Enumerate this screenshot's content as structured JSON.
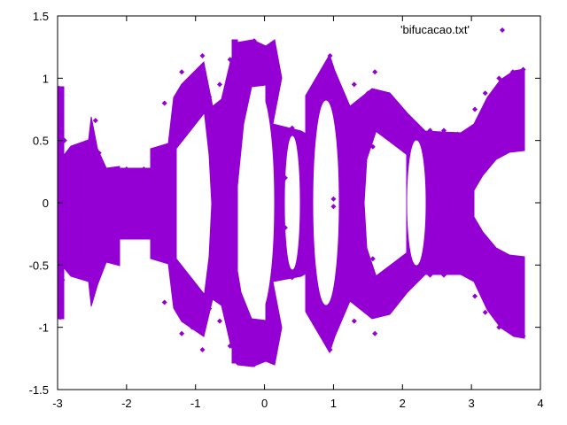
{
  "chart_data": {
    "type": "scatter",
    "title": "",
    "xlabel": "",
    "ylabel": "",
    "xlim": [
      -3,
      4
    ],
    "ylim": [
      -1.5,
      1.5
    ],
    "xticks": [
      "-3",
      "-2",
      "-1",
      "0",
      "1",
      "2",
      "3",
      "4"
    ],
    "yticks": [
      "-1.5",
      "-1",
      "-0.5",
      "0",
      "0.5",
      "1",
      "1.5"
    ],
    "grid": false,
    "legend_position": "top-right",
    "series": [
      {
        "name": "'bifucacao.txt'",
        "color": "#9400d3",
        "marker": "diamond",
        "points": [
          [
            -2.98,
            0.92
          ],
          [
            -2.96,
            -0.92
          ],
          [
            -2.95,
            0.62
          ],
          [
            -2.93,
            -0.62
          ],
          [
            -2.9,
            0.5
          ],
          [
            -2.88,
            -0.5
          ],
          [
            -2.6,
            0.48
          ],
          [
            -2.6,
            -0.48
          ],
          [
            -2.45,
            0.66
          ],
          [
            -2.45,
            -0.66
          ],
          [
            -2.4,
            0.4
          ],
          [
            -2.4,
            -0.4
          ],
          [
            -2.35,
            0.26
          ],
          [
            -2.35,
            -0.26
          ],
          [
            -2.0,
            0.27
          ],
          [
            -2.0,
            -0.27
          ],
          [
            -1.75,
            0.27
          ],
          [
            -1.75,
            -0.27
          ],
          [
            -1.6,
            0.36
          ],
          [
            -1.6,
            -0.36
          ],
          [
            -1.45,
            0.8
          ],
          [
            -1.45,
            -0.8
          ],
          [
            -1.35,
            0.52
          ],
          [
            -1.35,
            -0.52
          ],
          [
            -1.3,
            0.75
          ],
          [
            -1.3,
            -0.75
          ],
          [
            -1.2,
            1.05
          ],
          [
            -1.2,
            -1.05
          ],
          [
            -1.05,
            1.0
          ],
          [
            -1.05,
            -1.0
          ],
          [
            -0.9,
            1.18
          ],
          [
            -0.9,
            -1.18
          ],
          [
            -0.8,
            0.85
          ],
          [
            -0.8,
            -0.85
          ],
          [
            -0.65,
            0.95
          ],
          [
            -0.65,
            -0.95
          ],
          [
            -0.5,
            1.15
          ],
          [
            -0.5,
            -1.15
          ],
          [
            -0.4,
            1.28
          ],
          [
            -0.4,
            -1.28
          ],
          [
            -0.3,
            1.22
          ],
          [
            -0.3,
            -1.22
          ],
          [
            -0.15,
            1.3
          ],
          [
            -0.15,
            -1.3
          ],
          [
            0.0,
            1.2
          ],
          [
            0.0,
            -1.2
          ],
          [
            0.15,
            0.6
          ],
          [
            0.15,
            -0.6
          ],
          [
            0.25,
            0.58
          ],
          [
            0.25,
            -0.58
          ],
          [
            0.4,
            0.6
          ],
          [
            0.4,
            -0.6
          ],
          [
            0.55,
            0.55
          ],
          [
            0.55,
            -0.55
          ],
          [
            0.7,
            0.55
          ],
          [
            0.7,
            -0.55
          ],
          [
            0.8,
            1.0
          ],
          [
            0.8,
            -1.0
          ],
          [
            0.95,
            1.18
          ],
          [
            0.95,
            -1.18
          ],
          [
            1.1,
            0.85
          ],
          [
            1.1,
            -0.85
          ],
          [
            1.3,
            0.95
          ],
          [
            1.3,
            -0.95
          ],
          [
            1.5,
            0.88
          ],
          [
            1.5,
            -0.88
          ],
          [
            1.6,
            1.05
          ],
          [
            1.6,
            -1.05
          ],
          [
            1.75,
            0.72
          ],
          [
            1.75,
            -0.72
          ],
          [
            1.95,
            0.65
          ],
          [
            1.95,
            -0.65
          ],
          [
            2.2,
            0.6
          ],
          [
            2.2,
            -0.6
          ],
          [
            2.4,
            0.58
          ],
          [
            2.4,
            -0.58
          ],
          [
            2.6,
            0.58
          ],
          [
            2.6,
            -0.58
          ],
          [
            2.8,
            0.55
          ],
          [
            2.8,
            -0.55
          ],
          [
            3.0,
            0.55
          ],
          [
            3.0,
            -0.55
          ],
          [
            3.05,
            0.75
          ],
          [
            3.05,
            -0.75
          ],
          [
            3.2,
            0.88
          ],
          [
            3.2,
            -0.88
          ],
          [
            3.4,
            1.0
          ],
          [
            3.4,
            -1.0
          ],
          [
            3.6,
            1.05
          ],
          [
            3.6,
            -1.05
          ],
          [
            3.75,
            1.07
          ],
          [
            3.75,
            -1.07
          ],
          [
            1.0,
            0.03
          ],
          [
            1.0,
            -0.03
          ],
          [
            0.3,
            0.2
          ],
          [
            0.3,
            -0.2
          ],
          [
            -0.5,
            0.1
          ],
          [
            -0.5,
            -0.1
          ],
          [
            1.57,
            0.45
          ],
          [
            1.57,
            -0.45
          ]
        ]
      }
    ]
  }
}
